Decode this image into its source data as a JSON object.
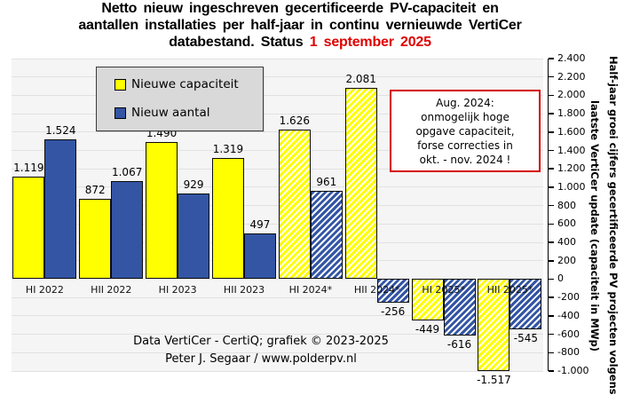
{
  "title": {
    "line1": "Netto nieuw ingeschreven gecertificeerde PV-capaciteit en",
    "line2": "aantallen installaties per half-jaar in continu vernieuwde VertiCer",
    "line3_prefix": "databestand. Status ",
    "line3_status": "1 september 2025",
    "status_color": "#e00000"
  },
  "legend": {
    "items": [
      {
        "label": "Nieuwe capaciteit",
        "color": "#ffff00"
      },
      {
        "label": "Nieuw aantal",
        "color": "#3355a4"
      }
    ]
  },
  "annotation": {
    "border_color": "#d60000",
    "lines": [
      "Aug. 2024:",
      "onmogelijk hoge",
      "opgave capaciteit,",
      "forse correcties in",
      "okt. - nov. 2024 !"
    ]
  },
  "credits": {
    "line1": "Data VertiCer - CertiQ; grafiek © 2023-2025",
    "line2": "Peter J. Segaar / www.polderpv.nl"
  },
  "chart_data": {
    "type": "bar",
    "categories": [
      "HI 2022",
      "HII 2022",
      "HI 2023",
      "HII 2023",
      "HI 2024*",
      "HII 2024*",
      "HI 2025*",
      "HII 2025*"
    ],
    "hatched": [
      false,
      false,
      false,
      false,
      true,
      true,
      true,
      true
    ],
    "series": [
      {
        "name": "Nieuwe capaciteit",
        "color": "#ffff00",
        "values": [
          1119,
          872,
          1490,
          1319,
          1626,
          2081,
          -449,
          -1517
        ],
        "labels": [
          "1.119",
          "872",
          "1.490",
          "1.319",
          "1.626",
          "2.081",
          "-449",
          "-1.517"
        ]
      },
      {
        "name": "Nieuw aantal",
        "color": "#3355a4",
        "values": [
          1524,
          1067,
          929,
          497,
          961,
          -256,
          -616,
          -545
        ],
        "labels": [
          "1.524",
          "1.067",
          "929",
          "497",
          "961",
          "-256",
          "-616",
          "-545"
        ]
      }
    ],
    "ylim": [
      -1000,
      2400
    ],
    "ytick_step": 200,
    "ytick_labels": [
      "2.400",
      "2.200",
      "2.000",
      "1.800",
      "1.600",
      "1.400",
      "1.200",
      "1.000",
      "800",
      "600",
      "400",
      "200",
      "0",
      "-200",
      "-400",
      "-600",
      "-800",
      "-1.000"
    ],
    "ylabel_line1": "Half-jaar groei cijfers gecertificeerde PV projecten volgens",
    "ylabel_line2": "laatste VertiCer update (capaciteit in MWp)",
    "grid": true,
    "legend_position": "top-left",
    "hatch_note": "2024/2025 bars drawn with diagonal hatching (provisional values)"
  }
}
